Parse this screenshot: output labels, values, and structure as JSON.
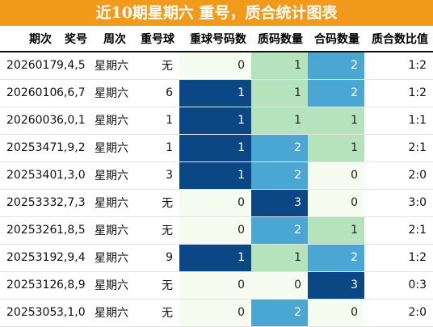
{
  "title": "近10期星期六 重号，质合统计图表",
  "headers": [
    "期次",
    "奖号",
    "周次",
    "重号球",
    "重球号码数",
    "质码数量",
    "合码数量",
    "质合数比值"
  ],
  "colors": {
    "title_bg": "#f29a1c",
    "heat_levels": [
      "#f7fcf0",
      "#b5e3bc",
      "#4aa6d2",
      "#0b4685"
    ]
  },
  "heat_scale": {
    "重球号码数": {
      "0": 0,
      "1": 3
    },
    "质码数量": {
      "0": 0,
      "1": 1,
      "2": 2,
      "3": 3
    },
    "合码数量": {
      "0": 0,
      "1": 1,
      "2": 2,
      "3": 3
    }
  },
  "rows": [
    {
      "issue": "2026017",
      "numbers": "9,4,5",
      "weekday": "星期六",
      "repeat_ball": "无",
      "repeat_count": "0",
      "prime_count": "1",
      "composite_count": "2",
      "ratio": "1:2"
    },
    {
      "issue": "2026010",
      "numbers": "6,6,7",
      "weekday": "星期六",
      "repeat_ball": "6",
      "repeat_count": "1",
      "prime_count": "1",
      "composite_count": "2",
      "ratio": "1:2"
    },
    {
      "issue": "2026003",
      "numbers": "6,0,1",
      "weekday": "星期六",
      "repeat_ball": "1",
      "repeat_count": "1",
      "prime_count": "1",
      "composite_count": "1",
      "ratio": "1:1"
    },
    {
      "issue": "2025347",
      "numbers": "1,9,2",
      "weekday": "星期六",
      "repeat_ball": "1",
      "repeat_count": "1",
      "prime_count": "2",
      "composite_count": "1",
      "ratio": "2:1"
    },
    {
      "issue": "2025340",
      "numbers": "1,3,0",
      "weekday": "星期六",
      "repeat_ball": "3",
      "repeat_count": "1",
      "prime_count": "2",
      "composite_count": "0",
      "ratio": "2:0"
    },
    {
      "issue": "2025333",
      "numbers": "2,7,3",
      "weekday": "星期六",
      "repeat_ball": "无",
      "repeat_count": "0",
      "prime_count": "3",
      "composite_count": "0",
      "ratio": "3:0"
    },
    {
      "issue": "2025326",
      "numbers": "1,8,5",
      "weekday": "星期六",
      "repeat_ball": "无",
      "repeat_count": "0",
      "prime_count": "2",
      "composite_count": "1",
      "ratio": "2:1"
    },
    {
      "issue": "2025319",
      "numbers": "2,9,4",
      "weekday": "星期六",
      "repeat_ball": "9",
      "repeat_count": "1",
      "prime_count": "1",
      "composite_count": "2",
      "ratio": "1:2"
    },
    {
      "issue": "2025312",
      "numbers": "6,8,9",
      "weekday": "星期六",
      "repeat_ball": "无",
      "repeat_count": "0",
      "prime_count": "0",
      "composite_count": "3",
      "ratio": "0:3"
    },
    {
      "issue": "2025305",
      "numbers": "3,1,0",
      "weekday": "星期六",
      "repeat_ball": "无",
      "repeat_count": "0",
      "prime_count": "2",
      "composite_count": "0",
      "ratio": "2:0"
    }
  ]
}
